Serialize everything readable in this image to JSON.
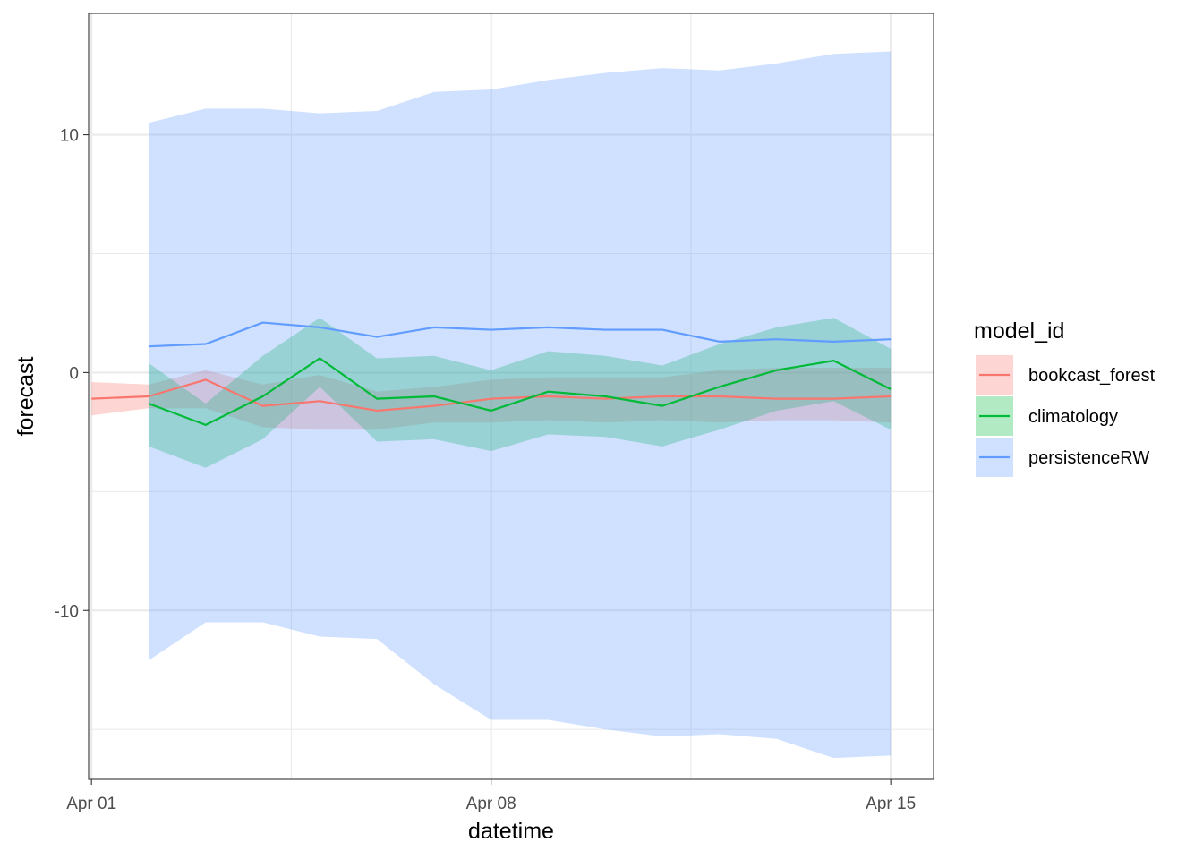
{
  "chart_data": {
    "type": "line",
    "xlabel": "datetime",
    "ylabel": "forecast",
    "xlim": [
      -0.05,
      14.75
    ],
    "ylim": [
      -17.1,
      15.1
    ],
    "x_ticks": [
      {
        "day": 0,
        "label": "Apr 01"
      },
      {
        "day": 7,
        "label": "Apr 08"
      },
      {
        "day": 14,
        "label": "Apr 15"
      }
    ],
    "x_minor_days": [
      3.5,
      10.5
    ],
    "y_ticks": [
      {
        "value": -10,
        "label": "-10"
      },
      {
        "value": 0,
        "label": "0"
      },
      {
        "value": 10,
        "label": "10"
      }
    ],
    "y_minor_values": [
      -15,
      -5,
      5
    ],
    "grid": true,
    "legend": {
      "title": "model_id",
      "position": "right"
    },
    "series": [
      {
        "name": "bookcast_forest",
        "color": "#F8766D",
        "x": [
          0,
          1,
          2,
          3,
          4,
          5,
          6,
          7,
          8,
          9,
          10,
          11,
          12,
          13,
          14
        ],
        "mean": [
          -1.1,
          -1.0,
          -0.3,
          -1.4,
          -1.2,
          -1.6,
          -1.4,
          -1.1,
          -1.0,
          -1.1,
          -1.0,
          -1.0,
          -1.1,
          -1.1,
          -1.0
        ],
        "lower": [
          -1.8,
          -1.5,
          -1.5,
          -2.3,
          -2.4,
          -2.4,
          -2.1,
          -2.1,
          -2.0,
          -2.1,
          -2.0,
          -2.1,
          -2.0,
          -2.0,
          -2.1
        ],
        "upper": [
          -0.4,
          -0.5,
          0.1,
          -0.5,
          -0.1,
          -0.8,
          -0.6,
          -0.3,
          -0.2,
          -0.2,
          -0.2,
          0.1,
          0.2,
          0.2,
          0.2
        ]
      },
      {
        "name": "climatology",
        "color": "#00BA38",
        "x": [
          1,
          2,
          3,
          4,
          5,
          6,
          7,
          8,
          9,
          10,
          11,
          12,
          13,
          14
        ],
        "mean": [
          -1.3,
          -2.2,
          -1.0,
          0.6,
          -1.1,
          -1.0,
          -1.6,
          -0.8,
          -1.0,
          -1.4,
          -0.6,
          0.1,
          0.5,
          -0.7
        ],
        "lower": [
          -3.1,
          -4.0,
          -2.8,
          -0.6,
          -2.9,
          -2.8,
          -3.3,
          -2.6,
          -2.7,
          -3.1,
          -2.4,
          -1.6,
          -1.2,
          -2.4
        ],
        "upper": [
          0.4,
          -1.3,
          0.7,
          2.3,
          0.6,
          0.7,
          0.1,
          0.9,
          0.7,
          0.3,
          1.2,
          1.9,
          2.3,
          1.0
        ]
      },
      {
        "name": "persistenceRW",
        "color": "#619CFF",
        "x": [
          1,
          2,
          3,
          4,
          5,
          6,
          7,
          8,
          9,
          10,
          11,
          12,
          13,
          14
        ],
        "mean": [
          1.1,
          1.2,
          2.1,
          1.9,
          1.5,
          1.9,
          1.8,
          1.9,
          1.8,
          1.8,
          1.3,
          1.4,
          1.3,
          1.4
        ],
        "lower": [
          -12.1,
          -10.5,
          -10.5,
          -11.1,
          -11.2,
          -13.1,
          -14.6,
          -14.6,
          -15.0,
          -15.3,
          -15.2,
          -15.4,
          -16.2,
          -16.1
        ],
        "upper": [
          10.5,
          11.1,
          11.1,
          10.9,
          11.0,
          11.8,
          11.9,
          12.3,
          12.6,
          12.8,
          12.7,
          13.0,
          13.4,
          13.5
        ]
      }
    ]
  }
}
